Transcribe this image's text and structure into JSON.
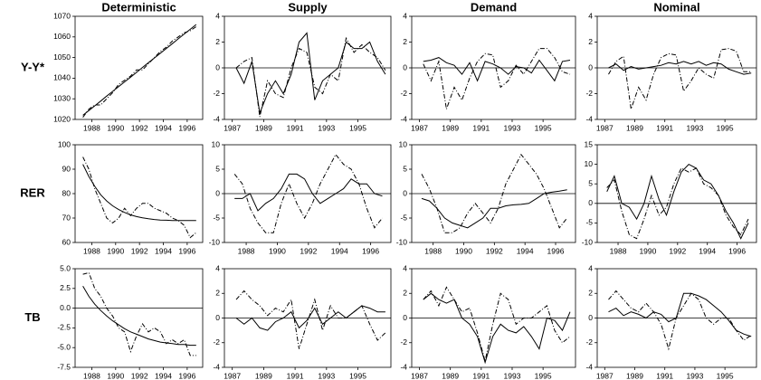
{
  "chart_data": [
    {
      "type": "line",
      "title": "Deterministic",
      "ylabel": "Y-Y*",
      "x": [
        1987.25,
        1987.75,
        1988.25,
        1988.75,
        1989.25,
        1989.75,
        1990.25,
        1990.75,
        1991.25,
        1991.75,
        1992.25,
        1992.75,
        1993.25,
        1993.75,
        1994.25,
        1994.75,
        1995.25,
        1995.75,
        1996.25,
        1996.75
      ],
      "xlim": [
        1986.6,
        1997.3
      ],
      "xticks": [
        1988,
        1990,
        1992,
        1994,
        1996
      ],
      "ylim": [
        1020,
        1070
      ],
      "yticks": [
        1020,
        1030,
        1040,
        1050,
        1060,
        1070
      ],
      "series": [
        {
          "color": "#000000",
          "style": "solid",
          "values": [
            1022,
            1024.3,
            1026.6,
            1028.9,
            1031.3,
            1033.6,
            1035.9,
            1038.2,
            1040.5,
            1042.8,
            1045.2,
            1047.5,
            1049.8,
            1052.1,
            1054.4,
            1056.7,
            1059.1,
            1061.4,
            1063.7,
            1066
          ]
        },
        {
          "color": "#000000",
          "style": "dashdot",
          "values": [
            1021,
            1025,
            1027,
            1027,
            1030,
            1033,
            1037,
            1039,
            1041,
            1044,
            1044,
            1047,
            1050,
            1053,
            1055,
            1058,
            1060,
            1062,
            1063,
            1065
          ]
        }
      ]
    },
    {
      "type": "line",
      "title": "Supply",
      "x": [
        1987.25,
        1987.75,
        1988.25,
        1988.75,
        1989.25,
        1989.75,
        1990.25,
        1990.75,
        1991.25,
        1991.75,
        1992.25,
        1992.75,
        1993.25,
        1993.75,
        1994.25,
        1994.75,
        1995.25,
        1995.75,
        1996.25,
        1996.75
      ],
      "xlim": [
        1986.5,
        1997.1
      ],
      "xticks": [
        1987,
        1989,
        1991,
        1993,
        1995
      ],
      "ylim": [
        -4,
        4
      ],
      "yticks": [
        -4,
        -2,
        0,
        2,
        4
      ],
      "series": [
        {
          "color": "#000000",
          "style": "solid",
          "values": [
            0,
            -1.2,
            0.5,
            -3.5,
            -2,
            -1,
            -2,
            -0.5,
            2,
            2.7,
            -2.5,
            -1,
            -0.5,
            0,
            2,
            1.5,
            1.5,
            2,
            0.5,
            -0.5
          ]
        },
        {
          "color": "#000000",
          "style": "dashdot",
          "values": [
            0,
            0.5,
            0.8,
            -3.8,
            -1,
            -2,
            -2.3,
            0,
            1.5,
            1.2,
            -1.5,
            -2,
            -0.5,
            -1,
            2.3,
            1.2,
            1.8,
            1.2,
            0.8,
            -0.2
          ]
        }
      ]
    },
    {
      "type": "line",
      "title": "Demand",
      "x": [
        1987.25,
        1987.75,
        1988.25,
        1988.75,
        1989.25,
        1989.75,
        1990.25,
        1990.75,
        1991.25,
        1991.75,
        1992.25,
        1992.75,
        1993.25,
        1993.75,
        1994.25,
        1994.75,
        1995.25,
        1995.75,
        1996.25,
        1996.75
      ],
      "xlim": [
        1986.5,
        1997.1
      ],
      "xticks": [
        1987,
        1989,
        1991,
        1993,
        1995
      ],
      "ylim": [
        -4,
        4
      ],
      "yticks": [
        -4,
        -2,
        0,
        2,
        4
      ],
      "series": [
        {
          "color": "#000000",
          "style": "solid",
          "values": [
            0.5,
            0.6,
            0.8,
            0.4,
            0.2,
            -0.5,
            0.4,
            -1,
            0.5,
            0.3,
            0,
            -0.5,
            0.1,
            0,
            -0.4,
            0.6,
            -0.2,
            -1,
            0.5,
            0.6
          ]
        },
        {
          "color": "#000000",
          "style": "dashdot",
          "values": [
            0.3,
            -1,
            0.5,
            -3.2,
            -1.5,
            -2.5,
            -0.8,
            0.5,
            1.1,
            1,
            -1.5,
            -1,
            0.2,
            -0.5,
            0.5,
            1.5,
            1.5,
            0.8,
            -0.3,
            -0.5
          ]
        }
      ]
    },
    {
      "type": "line",
      "title": "Nominal",
      "x": [
        1987.25,
        1987.75,
        1988.25,
        1988.75,
        1989.25,
        1989.75,
        1990.25,
        1990.75,
        1991.25,
        1991.75,
        1992.25,
        1992.75,
        1993.25,
        1993.75,
        1994.25,
        1994.75,
        1995.25,
        1995.75,
        1996.25,
        1996.75
      ],
      "xlim": [
        1986.5,
        1997.1
      ],
      "xticks": [
        1987,
        1989,
        1991,
        1993,
        1995
      ],
      "ylim": [
        -4,
        4
      ],
      "yticks": [
        -4,
        -2,
        0,
        2,
        4
      ],
      "series": [
        {
          "color": "#000000",
          "style": "solid",
          "values": [
            0,
            0.3,
            -0.2,
            0.1,
            -0.1,
            0,
            0.1,
            0.2,
            0.4,
            0.3,
            0.5,
            0.3,
            0.5,
            0.2,
            0.4,
            0.3,
            -0.1,
            -0.3,
            -0.5,
            -0.4
          ]
        },
        {
          "color": "#000000",
          "style": "dashdot",
          "values": [
            -0.5,
            0.5,
            0.9,
            -3.2,
            -1.5,
            -2.5,
            -0.5,
            0.8,
            1.1,
            1,
            -1.8,
            -1,
            0,
            -0.5,
            -0.8,
            1.4,
            1.5,
            1.3,
            -0.3,
            -0.3
          ]
        }
      ]
    },
    {
      "type": "line",
      "ylabel": "RER",
      "x": [
        1987.25,
        1987.75,
        1988.25,
        1988.75,
        1989.25,
        1989.75,
        1990.25,
        1990.75,
        1991.25,
        1991.75,
        1992.25,
        1992.75,
        1993.25,
        1993.75,
        1994.25,
        1994.75,
        1995.25,
        1995.75,
        1996.25,
        1996.75
      ],
      "xlim": [
        1986.6,
        1997.3
      ],
      "xticks": [
        1988,
        1990,
        1992,
        1994,
        1996
      ],
      "ylim": [
        60,
        100
      ],
      "yticks": [
        60,
        70,
        80,
        90,
        100
      ],
      "series": [
        {
          "color": "#000000",
          "style": "solid",
          "values": [
            92,
            87,
            83,
            79.5,
            77,
            75,
            73.5,
            72.3,
            71.3,
            70.6,
            70.1,
            69.7,
            69.4,
            69.2,
            69.1,
            69,
            69,
            69,
            69,
            69
          ]
        },
        {
          "color": "#000000",
          "style": "dashdot",
          "values": [
            95,
            90,
            82,
            76,
            70,
            68,
            70,
            74,
            71,
            74,
            76,
            76,
            74,
            73,
            72,
            70,
            69,
            67,
            62,
            64
          ]
        }
      ]
    },
    {
      "type": "line",
      "x": [
        1987.25,
        1987.75,
        1988.25,
        1988.75,
        1989.25,
        1989.75,
        1990.25,
        1990.75,
        1991.25,
        1991.75,
        1992.25,
        1992.75,
        1993.25,
        1993.75,
        1994.25,
        1994.75,
        1995.25,
        1995.75,
        1996.25,
        1996.75
      ],
      "xlim": [
        1986.6,
        1997.3
      ],
      "xticks": [
        1988,
        1990,
        1992,
        1994,
        1996
      ],
      "ylim": [
        -10,
        10
      ],
      "yticks": [
        -10,
        -5,
        0,
        5,
        10
      ],
      "series": [
        {
          "color": "#000000",
          "style": "solid",
          "values": [
            -1,
            -1,
            0,
            -3.5,
            -2,
            -1,
            1,
            4,
            4,
            3,
            0,
            -2,
            -1,
            0,
            1,
            3,
            2,
            2,
            0,
            -0.5
          ]
        },
        {
          "color": "#000000",
          "style": "dashdot",
          "values": [
            4,
            2,
            -3,
            -6,
            -8,
            -8,
            -2,
            2,
            -2,
            -5,
            -2,
            2,
            5,
            8,
            6,
            5,
            2,
            -3,
            -7,
            -5
          ]
        }
      ]
    },
    {
      "type": "line",
      "x": [
        1987.25,
        1987.75,
        1988.25,
        1988.75,
        1989.25,
        1989.75,
        1990.25,
        1990.75,
        1991.25,
        1991.75,
        1992.25,
        1992.75,
        1993.25,
        1993.75,
        1994.25,
        1994.75,
        1995.25,
        1995.75,
        1996.25,
        1996.75
      ],
      "xlim": [
        1986.6,
        1997.3
      ],
      "xticks": [
        1988,
        1990,
        1992,
        1994,
        1996
      ],
      "ylim": [
        -10,
        10
      ],
      "yticks": [
        -10,
        -5,
        0,
        5,
        10
      ],
      "series": [
        {
          "color": "#000000",
          "style": "solid",
          "values": [
            -1,
            -1.5,
            -3,
            -5,
            -6,
            -6.5,
            -7,
            -6,
            -5,
            -3,
            -3,
            -2.5,
            -2.3,
            -2.2,
            -2,
            -1,
            0,
            0.3,
            0.5,
            0.8
          ]
        },
        {
          "color": "#000000",
          "style": "dashdot",
          "values": [
            4,
            1,
            -3,
            -8,
            -8,
            -7,
            -4,
            -2,
            -4,
            -6,
            -3,
            2,
            5,
            8,
            6,
            4,
            1,
            -3,
            -7,
            -5
          ]
        }
      ]
    },
    {
      "type": "line",
      "x": [
        1987.25,
        1987.75,
        1988.25,
        1988.75,
        1989.25,
        1989.75,
        1990.25,
        1990.75,
        1991.25,
        1991.75,
        1992.25,
        1992.75,
        1993.25,
        1993.75,
        1994.25,
        1994.75,
        1995.25,
        1995.75,
        1996.25,
        1996.75
      ],
      "xlim": [
        1986.6,
        1997.3
      ],
      "xticks": [
        1988,
        1990,
        1992,
        1994,
        1996
      ],
      "ylim": [
        -10,
        15
      ],
      "yticks": [
        -10,
        -5,
        0,
        5,
        10,
        15
      ],
      "series": [
        {
          "color": "#000000",
          "style": "solid",
          "values": [
            3,
            7,
            0,
            -1,
            -4,
            0,
            7,
            1,
            -3,
            3,
            8,
            10,
            9,
            6,
            5,
            2,
            -2,
            -5,
            -9,
            -5
          ]
        },
        {
          "color": "#000000",
          "style": "dashdot",
          "values": [
            4,
            6,
            -2,
            -8,
            -9,
            -4,
            2,
            -3,
            -1,
            5,
            9,
            8,
            9,
            5,
            4,
            2,
            -3,
            -6,
            -8,
            -4
          ]
        }
      ]
    },
    {
      "type": "line",
      "ylabel": "TB",
      "x": [
        1987.25,
        1987.75,
        1988.25,
        1988.75,
        1989.25,
        1989.75,
        1990.25,
        1990.75,
        1991.25,
        1991.75,
        1992.25,
        1992.75,
        1993.25,
        1993.75,
        1994.25,
        1994.75,
        1995.25,
        1995.75,
        1996.25,
        1996.75
      ],
      "xlim": [
        1986.6,
        1997.3
      ],
      "xticks": [
        1988,
        1990,
        1992,
        1994,
        1996
      ],
      "ylim": [
        -7.5,
        5
      ],
      "yticks": [
        {
          "value": -7.5,
          "label": "-7.5"
        },
        {
          "value": -5,
          "label": "-5.0"
        },
        {
          "value": -2.5,
          "label": "-2.5"
        },
        {
          "value": 0,
          "label": "0.0"
        },
        {
          "value": 2.5,
          "label": "2.5"
        },
        {
          "value": 5,
          "label": "5.0"
        }
      ],
      "series": [
        {
          "color": "#000000",
          "style": "solid",
          "values": [
            2.8,
            1.5,
            0.5,
            -0.3,
            -1,
            -1.6,
            -2.1,
            -2.6,
            -3,
            -3.3,
            -3.6,
            -3.9,
            -4.1,
            -4.3,
            -4.4,
            -4.5,
            -4.6,
            -4.6,
            -4.7,
            -4.7
          ]
        },
        {
          "color": "#000000",
          "style": "dashdot",
          "values": [
            4.3,
            4.5,
            2.5,
            1.5,
            0,
            -1,
            -2.5,
            -3,
            -5.5,
            -3.5,
            -2,
            -3,
            -2.5,
            -3,
            -4.5,
            -4,
            -4.5,
            -4,
            -6,
            -6
          ]
        }
      ]
    },
    {
      "type": "line",
      "x": [
        1987.25,
        1987.75,
        1988.25,
        1988.75,
        1989.25,
        1989.75,
        1990.25,
        1990.75,
        1991.25,
        1991.75,
        1992.25,
        1992.75,
        1993.25,
        1993.75,
        1994.25,
        1994.75,
        1995.25,
        1995.75,
        1996.25,
        1996.75
      ],
      "xlim": [
        1986.5,
        1997.1
      ],
      "xticks": [
        1987,
        1989,
        1991,
        1993,
        1995
      ],
      "ylim": [
        -4,
        4
      ],
      "yticks": [
        -4,
        -2,
        0,
        2,
        4
      ],
      "series": [
        {
          "color": "#000000",
          "style": "solid",
          "values": [
            0,
            -0.5,
            0,
            -0.8,
            -1,
            -0.3,
            0,
            0.5,
            -0.8,
            -0.2,
            0.8,
            -0.5,
            0,
            0.5,
            0,
            0.5,
            1,
            0.8,
            0.5,
            0.5
          ]
        },
        {
          "color": "#000000",
          "style": "dashdot",
          "values": [
            1.5,
            2.2,
            1.5,
            1,
            0.2,
            0.8,
            0.5,
            1.5,
            -2.5,
            -0.5,
            1.5,
            -1,
            1,
            0,
            0,
            0.5,
            1,
            -0.5,
            -1.8,
            -1.2
          ]
        }
      ]
    },
    {
      "type": "line",
      "x": [
        1987.25,
        1987.75,
        1988.25,
        1988.75,
        1989.25,
        1989.75,
        1990.25,
        1990.75,
        1991.25,
        1991.75,
        1992.25,
        1992.75,
        1993.25,
        1993.75,
        1994.25,
        1994.75,
        1995.25,
        1995.75,
        1996.25,
        1996.75
      ],
      "xlim": [
        1986.5,
        1997.1
      ],
      "xticks": [
        1987,
        1989,
        1991,
        1993,
        1995
      ],
      "ylim": [
        -4,
        4
      ],
      "yticks": [
        -4,
        -2,
        0,
        2,
        4
      ],
      "series": [
        {
          "color": "#000000",
          "style": "solid",
          "values": [
            1.5,
            2,
            1.5,
            1.2,
            1.5,
            0,
            -0.5,
            -1.5,
            -3.6,
            -1.5,
            -0.5,
            -1,
            -1.2,
            -0.7,
            -1.5,
            -2.5,
            0,
            -0.2,
            -1,
            0.5
          ]
        },
        {
          "color": "#000000",
          "style": "dashdot",
          "values": [
            1.5,
            2.2,
            1,
            2.5,
            1.5,
            0.5,
            0.8,
            -1.2,
            -3.5,
            -0.5,
            2,
            1.5,
            -0.5,
            0,
            0,
            0.5,
            1,
            -1,
            -2,
            -1.5
          ]
        }
      ]
    },
    {
      "type": "line",
      "x": [
        1987.25,
        1987.75,
        1988.25,
        1988.75,
        1989.25,
        1989.75,
        1990.25,
        1990.75,
        1991.25,
        1991.75,
        1992.25,
        1992.75,
        1993.25,
        1993.75,
        1994.25,
        1994.75,
        1995.25,
        1995.75,
        1996.25,
        1996.75
      ],
      "xlim": [
        1986.5,
        1997.1
      ],
      "xticks": [
        1987,
        1989,
        1991,
        1993,
        1995
      ],
      "ylim": [
        -4,
        4
      ],
      "yticks": [
        -4,
        -2,
        0,
        2,
        4
      ],
      "series": [
        {
          "color": "#000000",
          "style": "solid",
          "values": [
            0.5,
            0.8,
            0.2,
            0.5,
            0.3,
            0,
            0.5,
            0.3,
            -0.3,
            0,
            2,
            2,
            1.8,
            1.5,
            1,
            0.5,
            -0.2,
            -1,
            -1.3,
            -1.5
          ]
        },
        {
          "color": "#000000",
          "style": "dashdot",
          "values": [
            1.5,
            2.2,
            1.5,
            0.8,
            0.5,
            1.2,
            0.5,
            -0.5,
            -2.5,
            0,
            1,
            2,
            1.5,
            0,
            -0.5,
            0,
            0,
            -1,
            -1.8,
            -1.4
          ]
        }
      ]
    }
  ]
}
